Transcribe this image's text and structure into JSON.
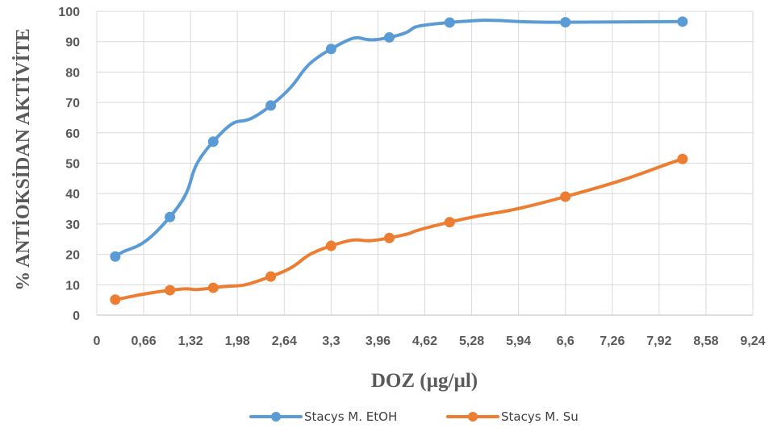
{
  "chart_data": {
    "type": "line",
    "xlabel": "DOZ (µg/µl)",
    "ylabel": "% ANTİOKSİDAN AKTİVİTE",
    "xlim": [
      0,
      9.24
    ],
    "ylim": [
      0,
      100
    ],
    "x_ticks": [
      "0",
      "0,66",
      "1,32",
      "1,98",
      "2,64",
      "3,3",
      "3,96",
      "4,62",
      "5,28",
      "5,94",
      "6,6",
      "7,26",
      "7,92",
      "8,58",
      "9,24"
    ],
    "y_ticks": [
      "0",
      "10",
      "20",
      "30",
      "40",
      "50",
      "60",
      "70",
      "80",
      "90",
      "100"
    ],
    "grid": true,
    "legend_position": "bottom",
    "series": [
      {
        "name": "Stacys M. EtOH",
        "color": "#5B9BD5",
        "x": [
          0.26,
          1.03,
          1.64,
          2.45,
          3.3,
          4.12,
          4.97,
          6.6,
          8.25
        ],
        "y": [
          19.3,
          32.3,
          57.1,
          69.0,
          87.6,
          91.4,
          96.3,
          96.4,
          96.6
        ]
      },
      {
        "name": "Stacys M. Su",
        "color": "#ED7D31",
        "x": [
          0.26,
          1.03,
          1.64,
          2.45,
          3.3,
          4.12,
          4.97,
          6.6,
          8.25
        ],
        "y": [
          5.1,
          8.2,
          9.0,
          12.7,
          22.8,
          25.4,
          30.6,
          39.0,
          51.4
        ]
      }
    ]
  }
}
